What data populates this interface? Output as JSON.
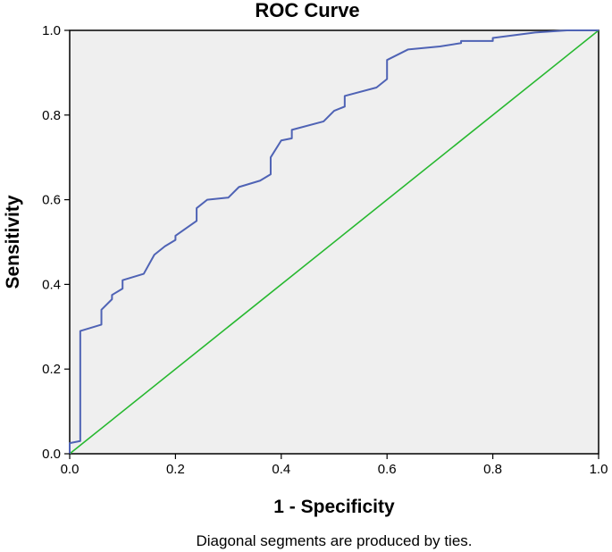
{
  "colors": {
    "plot_background": "#efefef",
    "frame": "#000000",
    "roc_curve": "#4f63b5",
    "reference_line": "#27b830"
  },
  "chart_data": {
    "type": "line",
    "title": "ROC Curve",
    "xlabel": "1 - Specificity",
    "ylabel": "Sensitivity",
    "xlim": [
      0.0,
      1.0
    ],
    "ylim": [
      0.0,
      1.0
    ],
    "x_ticks": [
      "0.0",
      "0.2",
      "0.4",
      "0.6",
      "0.8",
      "1.0"
    ],
    "y_ticks": [
      "0.0",
      "0.2",
      "0.4",
      "0.6",
      "0.8",
      "1.0"
    ],
    "grid": false,
    "legend": "none",
    "footnote": "Diagonal segments are produced by ties.",
    "series": [
      {
        "role": "roc",
        "x": [
          0.0,
          0.0,
          0.02,
          0.02,
          0.06,
          0.06,
          0.08,
          0.08,
          0.1,
          0.1,
          0.14,
          0.16,
          0.18,
          0.2,
          0.2,
          0.24,
          0.24,
          0.26,
          0.3,
          0.32,
          0.36,
          0.38,
          0.38,
          0.4,
          0.42,
          0.42,
          0.48,
          0.5,
          0.52,
          0.52,
          0.58,
          0.6,
          0.6,
          0.64,
          0.7,
          0.74,
          0.74,
          0.8,
          0.8,
          0.88,
          0.94,
          1.0
        ],
        "y": [
          0.0,
          0.025,
          0.03,
          0.29,
          0.305,
          0.34,
          0.365,
          0.375,
          0.39,
          0.41,
          0.425,
          0.47,
          0.49,
          0.505,
          0.515,
          0.55,
          0.58,
          0.6,
          0.605,
          0.63,
          0.645,
          0.66,
          0.7,
          0.74,
          0.745,
          0.765,
          0.785,
          0.81,
          0.82,
          0.845,
          0.865,
          0.885,
          0.93,
          0.955,
          0.962,
          0.97,
          0.975,
          0.975,
          0.982,
          0.995,
          1.0,
          1.0
        ]
      },
      {
        "role": "reference",
        "x": [
          0.0,
          1.0
        ],
        "y": [
          0.0,
          1.0
        ]
      }
    ]
  }
}
